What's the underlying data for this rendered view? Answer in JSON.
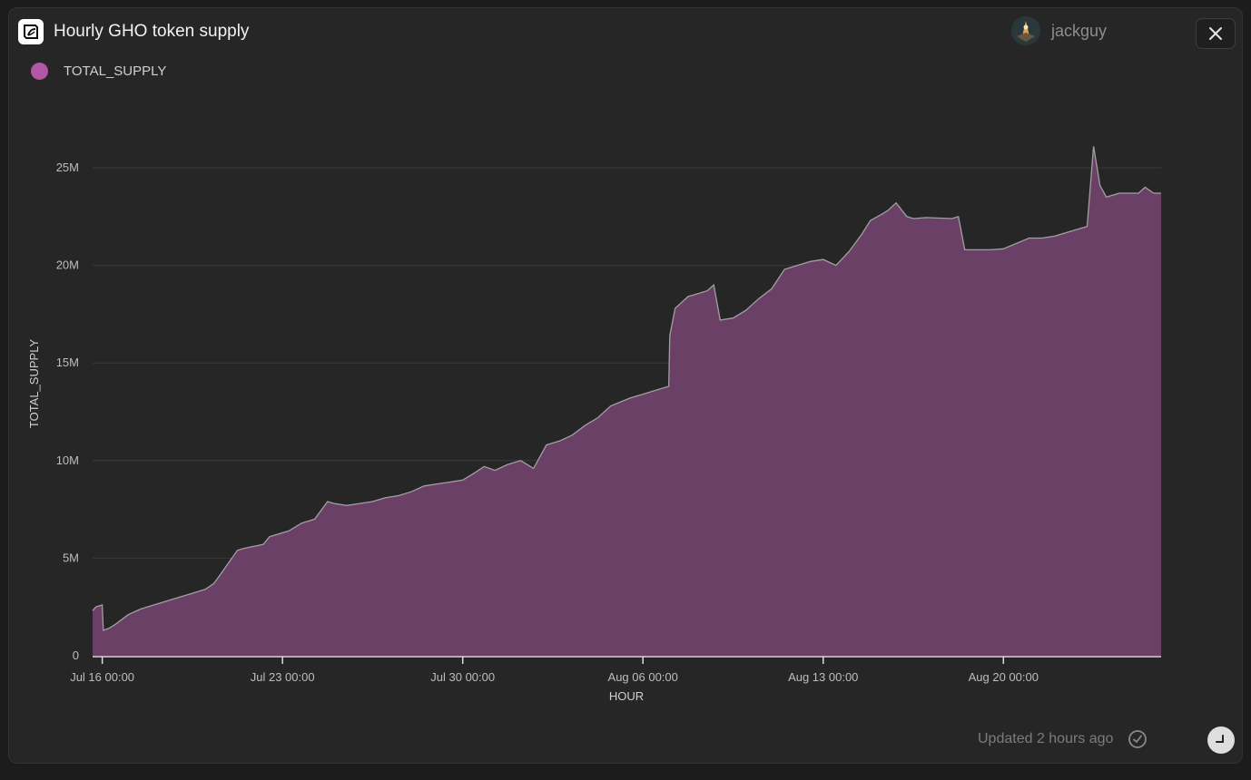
{
  "header": {
    "title": "Hourly GHO token supply"
  },
  "user": {
    "name": "jackguy"
  },
  "footer": {
    "updated": "Updated 2 hours ago"
  },
  "icons": {
    "logo": "flipside-logo-icon",
    "close": "close-icon",
    "check": "check-circle-icon",
    "corner": "resize-corner-icon"
  },
  "colors": {
    "background": "#262626",
    "area_fill": "#6b4066",
    "line": "#a0a0a0",
    "legend": "#b256a6"
  },
  "chart_data": {
    "type": "area",
    "xlabel": "HOUR",
    "ylabel": "TOTAL_SUPPLY",
    "legend": "top-left",
    "grid": true,
    "xlim": [
      "2023-07-15 15:00",
      "2023-08-26 03:00"
    ],
    "ylim": [
      0,
      25000000
    ],
    "yticks": [
      {
        "value": 0,
        "label": "0"
      },
      {
        "value": 5000000,
        "label": "5M"
      },
      {
        "value": 10000000,
        "label": "10M"
      },
      {
        "value": 15000000,
        "label": "15M"
      },
      {
        "value": 20000000,
        "label": "20M"
      },
      {
        "value": 25000000,
        "label": "25M"
      }
    ],
    "xticks": [
      {
        "value": "2023-07-16 00:00",
        "label": "Jul 16 00:00"
      },
      {
        "value": "2023-07-23 00:00",
        "label": "Jul 23 00:00"
      },
      {
        "value": "2023-07-30 00:00",
        "label": "Jul 30 00:00"
      },
      {
        "value": "2023-08-06 00:00",
        "label": "Aug 06 00:00"
      },
      {
        "value": "2023-08-13 00:00",
        "label": "Aug 13 00:00"
      },
      {
        "value": "2023-08-20 00:00",
        "label": "Aug 20 00:00"
      }
    ],
    "series": [
      {
        "name": "TOTAL_SUPPLY",
        "x": [
          "2023-07-15 15:00",
          "2023-07-15 18:00",
          "2023-07-16 00:00",
          "2023-07-16 01:00",
          "2023-07-16 06:00",
          "2023-07-16 12:00",
          "2023-07-17 00:00",
          "2023-07-17 12:00",
          "2023-07-18 00:00",
          "2023-07-18 12:00",
          "2023-07-19 00:00",
          "2023-07-19 12:00",
          "2023-07-20 00:00",
          "2023-07-20 08:00",
          "2023-07-20 12:00",
          "2023-07-21 06:00",
          "2023-07-21 12:00",
          "2023-07-22 06:00",
          "2023-07-22 12:00",
          "2023-07-23 06:00",
          "2023-07-23 18:00",
          "2023-07-24 06:00",
          "2023-07-24 18:00",
          "2023-07-25 00:00",
          "2023-07-25 12:00",
          "2023-07-26 00:00",
          "2023-07-26 12:00",
          "2023-07-27 00:00",
          "2023-07-27 12:00",
          "2023-07-28 00:00",
          "2023-07-28 12:00",
          "2023-07-29 00:00",
          "2023-07-29 12:00",
          "2023-07-30 00:00",
          "2023-07-30 12:00",
          "2023-07-30 20:00",
          "2023-07-31 06:00",
          "2023-07-31 18:00",
          "2023-08-01 06:00",
          "2023-08-01 18:00",
          "2023-08-02 06:00",
          "2023-08-02 18:00",
          "2023-08-03 06:00",
          "2023-08-03 18:00",
          "2023-08-04 06:00",
          "2023-08-04 18:00",
          "2023-08-05 12:00",
          "2023-08-06 00:00",
          "2023-08-06 12:00",
          "2023-08-07 00:00",
          "2023-08-07 01:00",
          "2023-08-07 06:00",
          "2023-08-07 18:00",
          "2023-08-08 12:00",
          "2023-08-08 18:00",
          "2023-08-09 00:00",
          "2023-08-09 12:00",
          "2023-08-10 00:00",
          "2023-08-10 12:00",
          "2023-08-11 00:00",
          "2023-08-11 12:00",
          "2023-08-12 00:00",
          "2023-08-12 12:00",
          "2023-08-13 00:00",
          "2023-08-13 12:00",
          "2023-08-14 00:00",
          "2023-08-14 12:00",
          "2023-08-14 20:00",
          "2023-08-15 06:00",
          "2023-08-15 12:00",
          "2023-08-15 20:00",
          "2023-08-16 06:00",
          "2023-08-16 12:00",
          "2023-08-17 00:00",
          "2023-08-18 00:00",
          "2023-08-18 06:00",
          "2023-08-18 12:00",
          "2023-08-19 00:00",
          "2023-08-19 12:00",
          "2023-08-20 00:00",
          "2023-08-21 00:00",
          "2023-08-21 12:00",
          "2023-08-22 00:00",
          "2023-08-22 12:00",
          "2023-08-23 00:00",
          "2023-08-23 06:00",
          "2023-08-23 12:00",
          "2023-08-23 18:00",
          "2023-08-24 00:00",
          "2023-08-24 12:00",
          "2023-08-25 00:00",
          "2023-08-25 06:00",
          "2023-08-25 12:00",
          "2023-08-25 20:00",
          "2023-08-26 03:00"
        ],
        "values": [
          2300000,
          2500000,
          2600000,
          1300000,
          1400000,
          1600000,
          2100000,
          2400000,
          2600000,
          2800000,
          3000000,
          3200000,
          3400000,
          3700000,
          4000000,
          5400000,
          5500000,
          5700000,
          6100000,
          6400000,
          6800000,
          7000000,
          7900000,
          7800000,
          7700000,
          7800000,
          7900000,
          8100000,
          8200000,
          8400000,
          8700000,
          8800000,
          8900000,
          9000000,
          9400000,
          9700000,
          9500000,
          9800000,
          10000000,
          9600000,
          10800000,
          11000000,
          11300000,
          11800000,
          12200000,
          12800000,
          13200000,
          13400000,
          13600000,
          13800000,
          16400000,
          17800000,
          18400000,
          18700000,
          19000000,
          17200000,
          17300000,
          17700000,
          18300000,
          18800000,
          19800000,
          20000000,
          20200000,
          20300000,
          20000000,
          20700000,
          21600000,
          22300000,
          22600000,
          22800000,
          23200000,
          22500000,
          22400000,
          22450000,
          22400000,
          22500000,
          20800000,
          20800000,
          20800000,
          20850000,
          21400000,
          21400000,
          21500000,
          21700000,
          21900000,
          22000000,
          26100000,
          24100000,
          23500000,
          23700000,
          23700000,
          23700000,
          24000000,
          23700000,
          23700000
        ]
      }
    ]
  }
}
